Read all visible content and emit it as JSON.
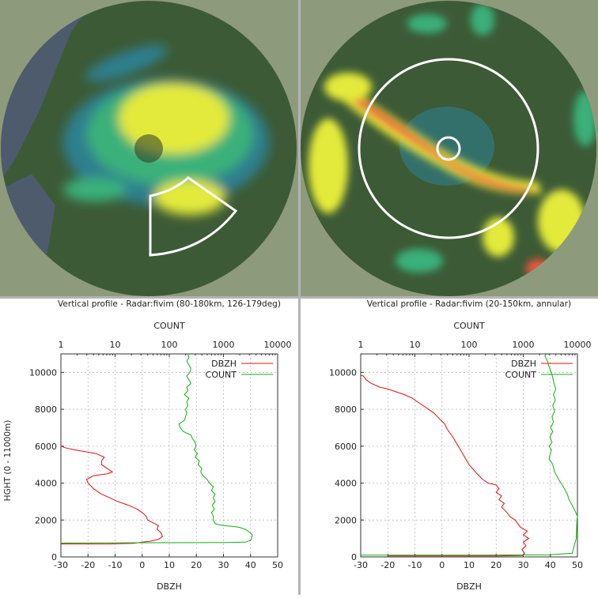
{
  "colors": {
    "land": "#8d9b7c",
    "land_dark": "#3c5a36",
    "water": "#4e5b6d",
    "echo_low": "#2f7f8f",
    "echo_mid": "#3bb07a",
    "echo_high": "#e4ea3a",
    "echo_strong": "#f0553b",
    "dbzh_line": "#e01010",
    "count_line": "#10b010",
    "sector_outline": "#ffffff"
  },
  "maps": [
    {
      "name": "left-radar-map",
      "overlay": "sector",
      "sector_range_km": "80-180",
      "sector_azimuth_deg": "126-179"
    },
    {
      "name": "right-radar-map",
      "overlay": "annulus",
      "annulus_range_km": "20-150"
    }
  ],
  "chart_data": [
    {
      "type": "line",
      "title": "Vertical profile - Radar:fivim (80-180km, 126-179deg)",
      "xlabel": "DBZH",
      "ylabel": "HGHT (0 - 11000m)",
      "x2label": "COUNT",
      "xlim": [
        -30,
        50
      ],
      "ylim": [
        0,
        11000
      ],
      "x2lim": [
        1,
        10000
      ],
      "x2scale": "log",
      "xticks": [
        -30,
        -20,
        -10,
        0,
        10,
        20,
        30,
        40,
        50
      ],
      "yticks": [
        0,
        2000,
        4000,
        6000,
        8000,
        10000
      ],
      "x2ticks": [
        "1",
        "10",
        "100",
        "1000",
        "10000"
      ],
      "grid": true,
      "legend": "top-right",
      "series": [
        {
          "name": "DBZH",
          "points": [
            [
              -30,
              700
            ],
            [
              -20,
              700
            ],
            [
              -12,
              700
            ],
            [
              -9,
              720
            ],
            [
              -3,
              740
            ],
            [
              0,
              800
            ],
            [
              3,
              850
            ],
            [
              6,
              950
            ],
            [
              7.5,
              1100
            ],
            [
              7,
              1300
            ],
            [
              5.5,
              1500
            ],
            [
              6,
              1700
            ],
            [
              4,
              1850
            ],
            [
              2,
              2000
            ],
            [
              1.5,
              2200
            ],
            [
              0,
              2400
            ],
            [
              -2,
              2600
            ],
            [
              -5,
              2800
            ],
            [
              -9,
              3000
            ],
            [
              -12,
              3200
            ],
            [
              -15,
              3400
            ],
            [
              -18,
              3700
            ],
            [
              -20,
              4000
            ],
            [
              -20.5,
              4200
            ],
            [
              -18,
              4400
            ],
            [
              -13,
              4500
            ],
            [
              -11,
              4600
            ],
            [
              -13,
              4800
            ],
            [
              -15,
              5000
            ],
            [
              -15,
              5200
            ],
            [
              -14,
              5400
            ],
            [
              -17,
              5600
            ],
            [
              -21,
              5700
            ],
            [
              -25,
              5800
            ],
            [
              -28,
              5900
            ],
            [
              -30,
              6000
            ]
          ]
        },
        {
          "name": "COUNT",
          "points": [
            [
              1,
              750
            ],
            [
              5,
              760
            ],
            [
              60,
              770
            ],
            [
              1200,
              780
            ],
            [
              2500,
              800
            ],
            [
              3200,
              900
            ],
            [
              3300,
              1000
            ],
            [
              3400,
              1200
            ],
            [
              3000,
              1350
            ],
            [
              2500,
              1500
            ],
            [
              2000,
              1600
            ],
            [
              1500,
              1650
            ],
            [
              1000,
              1700
            ],
            [
              800,
              1750
            ],
            [
              700,
              1800
            ],
            [
              650,
              2000
            ],
            [
              650,
              2200
            ],
            [
              600,
              2400
            ],
            [
              680,
              2600
            ],
            [
              620,
              2800
            ],
            [
              700,
              3000
            ],
            [
              650,
              3200
            ],
            [
              700,
              3400
            ],
            [
              600,
              3600
            ],
            [
              650,
              3800
            ],
            [
              550,
              4000
            ],
            [
              500,
              4200
            ],
            [
              420,
              4400
            ],
            [
              380,
              4600
            ],
            [
              400,
              4800
            ],
            [
              340,
              5000
            ],
            [
              360,
              5200
            ],
            [
              300,
              5400
            ],
            [
              330,
              5600
            ],
            [
              290,
              5800
            ],
            [
              310,
              6000
            ],
            [
              300,
              6200
            ],
            [
              270,
              6400
            ],
            [
              250,
              6600
            ],
            [
              180,
              6800
            ],
            [
              160,
              7000
            ],
            [
              150,
              7200
            ],
            [
              190,
              7400
            ],
            [
              200,
              7600
            ],
            [
              210,
              7800
            ],
            [
              200,
              8000
            ],
            [
              220,
              8200
            ],
            [
              210,
              8400
            ],
            [
              230,
              8600
            ],
            [
              190,
              8800
            ],
            [
              220,
              9000
            ],
            [
              210,
              9200
            ],
            [
              250,
              9400
            ],
            [
              230,
              9600
            ],
            [
              210,
              9800
            ],
            [
              240,
              10000
            ],
            [
              250,
              10200
            ],
            [
              230,
              10400
            ],
            [
              210,
              10600
            ],
            [
              230,
              10800
            ],
            [
              220,
              11000
            ]
          ]
        }
      ]
    },
    {
      "type": "line",
      "title": "Vertical profile - Radar:fivim (20-150km, annular)",
      "xlabel": "DBZH",
      "ylabel": "",
      "x2label": "COUNT",
      "xlim": [
        -30,
        50
      ],
      "ylim": [
        0,
        11000
      ],
      "x2lim": [
        1,
        10000
      ],
      "x2scale": "log",
      "xticks": [
        -30,
        -20,
        -10,
        0,
        10,
        20,
        30,
        40,
        50
      ],
      "yticks": [
        0,
        2000,
        4000,
        6000,
        8000,
        10000
      ],
      "x2ticks": [
        "1",
        "10",
        "100",
        "1000",
        "10000"
      ],
      "grid": true,
      "legend": "top-right",
      "series": [
        {
          "name": "DBZH",
          "points": [
            [
              -20,
              50
            ],
            [
              0,
              50
            ],
            [
              20,
              50
            ],
            [
              30,
              80
            ],
            [
              30.5,
              200
            ],
            [
              29.5,
              400
            ],
            [
              31,
              600
            ],
            [
              30,
              800
            ],
            [
              32,
              1000
            ],
            [
              30,
              1200
            ],
            [
              31.5,
              1400
            ],
            [
              29,
              1600
            ],
            [
              28,
              1800
            ],
            [
              27,
              2000
            ],
            [
              25,
              2200
            ],
            [
              24,
              2400
            ],
            [
              22,
              2700
            ],
            [
              23,
              2900
            ],
            [
              21,
              3100
            ],
            [
              22,
              3300
            ],
            [
              20,
              3500
            ],
            [
              21,
              3700
            ],
            [
              20,
              3900
            ],
            [
              17,
              4000
            ],
            [
              15,
              4200
            ],
            [
              13,
              4500
            ],
            [
              10,
              5000
            ],
            [
              8,
              5500
            ],
            [
              6,
              6000
            ],
            [
              4,
              6500
            ],
            [
              2,
              6900
            ],
            [
              1,
              7200
            ],
            [
              -1,
              7500
            ],
            [
              -3,
              7800
            ],
            [
              -5,
              8000
            ],
            [
              -8,
              8300
            ],
            [
              -11,
              8600
            ],
            [
              -14,
              8800
            ],
            [
              -16,
              8900
            ],
            [
              -20,
              9100
            ],
            [
              -23,
              9200
            ],
            [
              -26,
              9400
            ],
            [
              -28,
              9600
            ],
            [
              -29,
              9800
            ],
            [
              -30,
              9850
            ]
          ]
        },
        {
          "name": "COUNT",
          "points": [
            [
              1,
              100
            ],
            [
              100,
              100
            ],
            [
              3000,
              110
            ],
            [
              8000,
              200
            ],
            [
              9500,
              1000
            ],
            [
              9800,
              2000
            ],
            [
              10000,
              2200
            ],
            [
              9000,
              2500
            ],
            [
              8000,
              2800
            ],
            [
              7000,
              3100
            ],
            [
              6500,
              3400
            ],
            [
              5500,
              3800
            ],
            [
              4500,
              4200
            ],
            [
              3800,
              4600
            ],
            [
              3500,
              5000
            ],
            [
              3200,
              5200
            ],
            [
              3000,
              5300
            ],
            [
              3100,
              5500
            ],
            [
              3300,
              5800
            ],
            [
              3000,
              6000
            ],
            [
              3400,
              6200
            ],
            [
              3100,
              6500
            ],
            [
              3500,
              6800
            ],
            [
              3200,
              7000
            ],
            [
              3600,
              7300
            ],
            [
              3400,
              7600
            ],
            [
              3800,
              7900
            ],
            [
              3500,
              8200
            ],
            [
              3900,
              8500
            ],
            [
              3600,
              8800
            ],
            [
              4000,
              9100
            ],
            [
              3700,
              9400
            ],
            [
              3500,
              9700
            ],
            [
              3300,
              10000
            ],
            [
              3000,
              10300
            ],
            [
              2800,
              10600
            ],
            [
              2500,
              10900
            ],
            [
              2700,
              11000
            ]
          ]
        }
      ]
    }
  ]
}
